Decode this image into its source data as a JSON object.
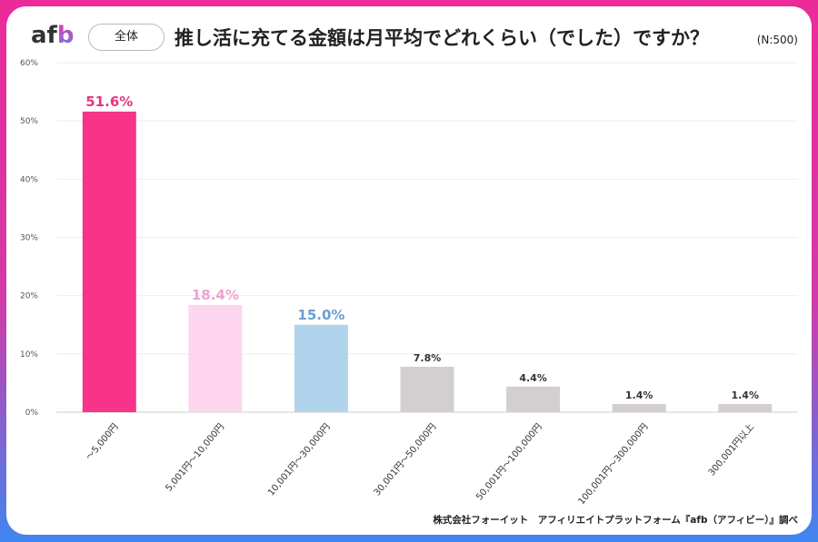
{
  "header": {
    "logo": "afb",
    "badge": "全体",
    "title": "推し活に充てる金額は月平均でどれくらい（でした）ですか？",
    "sample": "(N:500)"
  },
  "footer": {
    "credit": "株式会社フォーイット　アフィリエイトプラットフォーム『afb（アフィビー）』調べ"
  },
  "chart_data": {
    "type": "bar",
    "categories": [
      "～5,000円",
      "5,001円～10,000円",
      "10,001円～30,000円",
      "30,001円～50,000円",
      "50,001円～100,000円",
      "100,001円～300,000円",
      "300,001円以上"
    ],
    "values": [
      51.6,
      18.4,
      15.0,
      7.8,
      4.4,
      1.4,
      1.4
    ],
    "labels": [
      "51.6%",
      "18.4%",
      "15.0%",
      "7.8%",
      "4.4%",
      "1.4%",
      "1.4%"
    ],
    "colors": [
      "#f7348a",
      "#fdd5ee",
      "#b2d3ec",
      "#d3cfd0",
      "#d3cfd0",
      "#d3cfd0",
      "#d3cfd0"
    ],
    "label_colors": [
      "#e8357f",
      "#eca3cf",
      "#6a9fcf",
      "#333333",
      "#333333",
      "#333333",
      "#333333"
    ],
    "ylim": [
      0,
      60
    ],
    "yticks": [
      "0%",
      "10%",
      "20%",
      "30%",
      "40%",
      "50%",
      "60%"
    ],
    "grid": true,
    "legend": "none"
  }
}
